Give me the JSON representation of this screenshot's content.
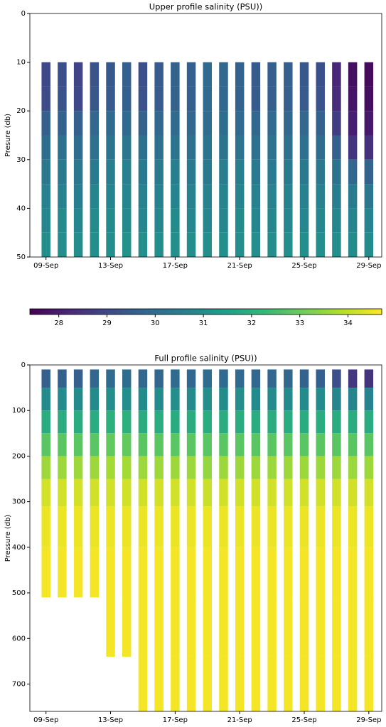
{
  "chart_data": [
    {
      "type": "heatmap",
      "title": "Upper profile salinity (PSU))",
      "ylabel": "Presure (db)",
      "x": [
        9,
        10,
        11,
        12,
        13,
        14,
        15,
        16,
        17,
        18,
        19,
        20,
        21,
        22,
        23,
        24,
        25,
        26,
        27,
        28,
        29
      ],
      "xlim": [
        8.0,
        29.8
      ],
      "xticks": [
        {
          "value": 9,
          "label": "09-Sep"
        },
        {
          "value": 13,
          "label": "13-Sep"
        },
        {
          "value": 17,
          "label": "17-Sep"
        },
        {
          "value": 21,
          "label": "21-Sep"
        },
        {
          "value": 25,
          "label": "25-Sep"
        },
        {
          "value": 29,
          "label": "29-Sep"
        }
      ],
      "ylim": [
        50,
        0
      ],
      "yticks": [
        0,
        10,
        20,
        30,
        40,
        50
      ],
      "depth_bins": [
        10,
        15,
        20,
        25,
        30,
        35,
        40,
        45,
        50
      ],
      "z": [
        [
          29.0,
          29.1,
          29.6,
          30.0,
          30.3,
          30.6,
          30.8,
          31.0
        ],
        [
          29.2,
          29.3,
          29.7,
          30.1,
          30.4,
          30.6,
          30.9,
          31.0
        ],
        [
          28.9,
          29.0,
          29.6,
          30.0,
          30.3,
          30.5,
          30.8,
          31.0
        ],
        [
          29.3,
          29.4,
          29.8,
          30.1,
          30.4,
          30.7,
          30.9,
          31.0
        ],
        [
          29.4,
          29.5,
          29.9,
          30.2,
          30.5,
          30.7,
          30.9,
          31.0
        ],
        [
          29.6,
          29.6,
          29.9,
          30.3,
          30.6,
          30.8,
          30.9,
          31.1
        ],
        [
          29.2,
          29.3,
          29.7,
          30.1,
          30.4,
          30.6,
          30.8,
          31.0
        ],
        [
          29.5,
          29.5,
          29.8,
          30.1,
          30.4,
          30.6,
          30.8,
          31.0
        ],
        [
          29.7,
          29.7,
          29.9,
          30.2,
          30.5,
          30.7,
          30.9,
          31.0
        ],
        [
          29.6,
          29.6,
          29.8,
          30.1,
          30.4,
          30.6,
          30.8,
          31.0
        ],
        [
          29.9,
          29.9,
          30.0,
          30.2,
          30.4,
          30.6,
          30.8,
          31.0
        ],
        [
          29.8,
          29.8,
          30.0,
          30.2,
          30.5,
          30.7,
          30.8,
          31.0
        ],
        [
          29.7,
          29.7,
          29.9,
          30.2,
          30.5,
          30.7,
          30.9,
          31.0
        ],
        [
          29.5,
          29.5,
          29.8,
          30.1,
          30.4,
          30.6,
          30.8,
          31.0
        ],
        [
          29.6,
          29.6,
          29.9,
          30.2,
          30.4,
          30.6,
          30.8,
          31.0
        ],
        [
          29.6,
          29.6,
          29.8,
          30.1,
          30.4,
          30.6,
          30.8,
          31.0
        ],
        [
          29.4,
          29.5,
          29.8,
          30.1,
          30.4,
          30.6,
          30.8,
          31.0
        ],
        [
          29.2,
          29.3,
          29.7,
          30.0,
          30.3,
          30.6,
          30.8,
          31.0
        ],
        [
          28.2,
          28.3,
          28.7,
          29.6,
          30.2,
          30.5,
          30.8,
          31.0
        ],
        [
          27.7,
          27.8,
          28.0,
          28.5,
          29.8,
          30.4,
          30.7,
          30.9
        ],
        [
          27.6,
          27.7,
          27.9,
          28.4,
          29.7,
          30.3,
          30.7,
          30.9
        ]
      ]
    },
    {
      "type": "colorbar",
      "colormap": "viridis",
      "lim": [
        27.4,
        34.7
      ],
      "ticks": [
        28,
        29,
        30,
        31,
        32,
        33,
        34
      ]
    },
    {
      "type": "heatmap",
      "title": "Full profile salinity (PSU))",
      "ylabel": "Pressure (db)",
      "x": [
        9,
        10,
        11,
        12,
        13,
        14,
        15,
        16,
        17,
        18,
        19,
        20,
        21,
        22,
        23,
        24,
        25,
        26,
        27,
        28,
        29
      ],
      "xlim": [
        8.0,
        29.8
      ],
      "xticks": [
        {
          "value": 9,
          "label": "09-Sep"
        },
        {
          "value": 13,
          "label": "13-Sep"
        },
        {
          "value": 17,
          "label": "17-Sep"
        },
        {
          "value": 21,
          "label": "21-Sep"
        },
        {
          "value": 25,
          "label": "25-Sep"
        },
        {
          "value": 29,
          "label": "29-Sep"
        }
      ],
      "ylim": [
        760,
        0
      ],
      "yticks": [
        0,
        100,
        200,
        300,
        400,
        500,
        600,
        700
      ],
      "depth_bins": [
        10,
        50,
        100,
        150,
        200,
        250,
        310,
        400,
        510,
        640,
        760
      ],
      "z": [
        [
          29.6,
          30.9,
          31.9,
          32.8,
          33.6,
          34.2,
          34.5,
          34.6,
          null,
          null
        ],
        [
          29.7,
          30.9,
          31.9,
          32.8,
          33.6,
          34.2,
          34.5,
          34.6,
          null,
          null
        ],
        [
          29.6,
          30.9,
          31.9,
          32.8,
          33.6,
          34.2,
          34.5,
          34.6,
          null,
          null
        ],
        [
          29.8,
          30.9,
          31.9,
          32.8,
          33.6,
          34.2,
          34.5,
          34.6,
          null,
          null
        ],
        [
          29.9,
          31.0,
          32.0,
          32.9,
          33.7,
          34.2,
          34.5,
          34.6,
          34.6,
          null
        ],
        [
          30.0,
          31.0,
          32.0,
          32.9,
          33.7,
          34.2,
          34.5,
          34.6,
          34.6,
          null
        ],
        [
          29.8,
          30.9,
          31.9,
          32.8,
          33.6,
          34.2,
          34.5,
          34.6,
          34.6,
          34.6
        ],
        [
          29.8,
          30.9,
          31.9,
          32.8,
          33.6,
          34.2,
          34.5,
          34.6,
          34.6,
          34.6
        ],
        [
          29.9,
          31.0,
          31.9,
          32.8,
          33.6,
          34.2,
          34.5,
          34.6,
          34.6,
          34.6
        ],
        [
          29.8,
          30.9,
          31.9,
          32.8,
          33.6,
          34.2,
          34.5,
          34.6,
          34.6,
          34.6
        ],
        [
          30.0,
          31.0,
          31.9,
          32.8,
          33.5,
          34.1,
          34.5,
          34.6,
          34.6,
          34.6
        ],
        [
          29.9,
          30.9,
          31.9,
          32.8,
          33.6,
          34.2,
          34.5,
          34.6,
          34.6,
          34.6
        ],
        [
          29.9,
          31.0,
          31.9,
          32.8,
          33.6,
          34.2,
          34.5,
          34.6,
          34.6,
          34.6
        ],
        [
          29.8,
          30.9,
          31.9,
          32.8,
          33.6,
          34.2,
          34.5,
          34.6,
          34.6,
          34.6
        ],
        [
          29.8,
          30.9,
          31.9,
          32.8,
          33.6,
          34.2,
          34.5,
          34.6,
          34.6,
          34.6
        ],
        [
          29.8,
          30.9,
          31.9,
          32.8,
          33.6,
          34.2,
          34.5,
          34.6,
          34.6,
          34.6
        ],
        [
          29.7,
          30.9,
          31.9,
          32.8,
          33.6,
          34.2,
          34.5,
          34.6,
          34.6,
          34.6
        ],
        [
          29.6,
          30.9,
          31.9,
          32.8,
          33.6,
          34.2,
          34.5,
          34.6,
          34.6,
          34.6
        ],
        [
          29.2,
          30.8,
          31.9,
          32.8,
          33.6,
          34.2,
          34.5,
          34.6,
          34.6,
          34.6
        ],
        [
          28.6,
          30.7,
          31.9,
          32.8,
          33.6,
          34.2,
          34.5,
          34.6,
          34.6,
          34.6
        ],
        [
          28.5,
          30.7,
          31.9,
          32.8,
          33.6,
          34.2,
          34.5,
          34.6,
          34.6,
          34.6
        ]
      ]
    }
  ]
}
